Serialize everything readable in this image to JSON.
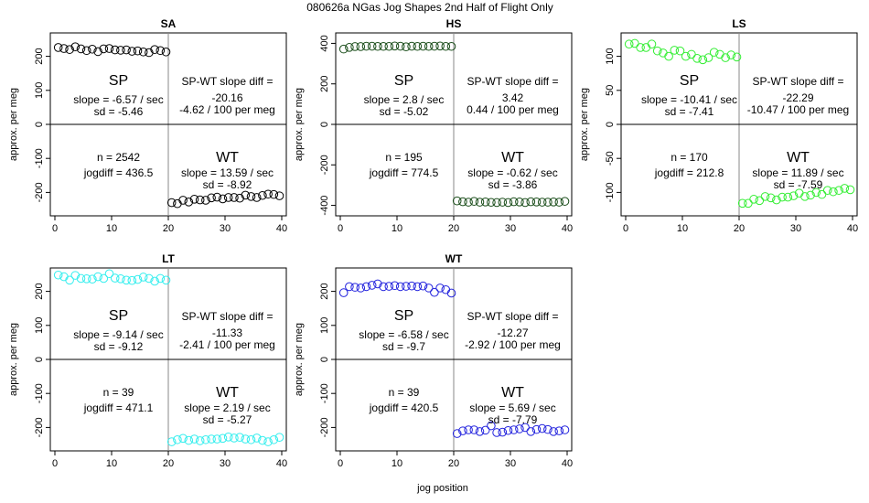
{
  "figure": {
    "title": "080626a   NGas Jog Shapes 2nd Half of Flight Only",
    "xlabel": "jog position",
    "ylabel": "approx. per meg"
  },
  "chart_data": [
    {
      "type": "scatter",
      "title": "SA",
      "color": "#000000",
      "xlim": [
        0,
        40
      ],
      "ylim": [
        -250,
        250
      ],
      "xticks": [
        "0",
        "10",
        "20",
        "30",
        "40"
      ],
      "yticks": [
        "-200",
        "-100",
        "0",
        "100",
        "200"
      ],
      "x": [
        1,
        2,
        3,
        4,
        5,
        6,
        7,
        8,
        9,
        10,
        11,
        12,
        13,
        14,
        15,
        16,
        17,
        18,
        19,
        20,
        21,
        22,
        23,
        24,
        25,
        26,
        27,
        28,
        29,
        30,
        31,
        32,
        33,
        34,
        35,
        36,
        37,
        38,
        39,
        40
      ],
      "y": [
        226,
        223,
        220,
        228,
        222,
        217,
        221,
        214,
        222,
        223,
        219,
        218,
        219,
        215,
        216,
        213,
        211,
        220,
        217,
        213,
        -230,
        -233,
        -223,
        -228,
        -220,
        -222,
        -223,
        -216,
        -214,
        -219,
        -215,
        -215,
        -217,
        -208,
        -212,
        -215,
        -209,
        -205,
        -206,
        -210
      ],
      "sp": {
        "label": "SP",
        "slope": "slope = -6.57 / sec",
        "sd": "sd = -5.46"
      },
      "wt": {
        "label": "WT",
        "slope": "slope = 13.59 / sec",
        "sd": "sd = -8.92"
      },
      "diff": {
        "label": "SP-WT slope diff =",
        "value": "-20.16",
        "permeg": "-4.62 / 100 per meg"
      },
      "n": "n = 2542",
      "jogdiff": "jogdiff = 436.5"
    },
    {
      "type": "scatter",
      "title": "HS",
      "color": "#1a4d1a",
      "xlim": [
        0,
        40
      ],
      "ylim": [
        -420,
        420
      ],
      "xticks": [
        "0",
        "10",
        "20",
        "30",
        "40"
      ],
      "yticks": [
        "-400",
        "-200",
        "0",
        "200",
        "400"
      ],
      "x": [
        1,
        2,
        3,
        4,
        5,
        6,
        7,
        8,
        9,
        10,
        11,
        12,
        13,
        14,
        15,
        16,
        17,
        18,
        19,
        20,
        21,
        22,
        23,
        24,
        25,
        26,
        27,
        28,
        29,
        30,
        31,
        32,
        33,
        34,
        35,
        36,
        37,
        38,
        39,
        40
      ],
      "y": [
        372,
        380,
        384,
        384,
        386,
        386,
        385,
        385,
        385,
        387,
        386,
        383,
        386,
        385,
        386,
        385,
        386,
        387,
        385,
        385,
        -378,
        -382,
        -384,
        -380,
        -384,
        -383,
        -385,
        -386,
        -384,
        -386,
        -382,
        -383,
        -386,
        -382,
        -383,
        -384,
        -384,
        -383,
        -384,
        -380
      ],
      "sp": {
        "label": "SP",
        "slope": "slope = 2.8 / sec",
        "sd": "sd = -5.02"
      },
      "wt": {
        "label": "WT",
        "slope": "slope = -0.62 / sec",
        "sd": "sd = -3.86"
      },
      "diff": {
        "label": "SP-WT slope diff =",
        "value": "3.42",
        "permeg": "0.44 / 100 per meg"
      },
      "n": "n = 195",
      "jogdiff": "jogdiff = 774.5"
    },
    {
      "type": "scatter",
      "title": "LS",
      "color": "#33ee33",
      "xlim": [
        0,
        40
      ],
      "ylim": [
        -125,
        125
      ],
      "xticks": [
        "0",
        "10",
        "20",
        "30",
        "40"
      ],
      "yticks": [
        "-100",
        "-50",
        "0",
        "50",
        "100"
      ],
      "x": [
        1,
        2,
        3,
        4,
        5,
        6,
        7,
        8,
        9,
        10,
        11,
        12,
        13,
        14,
        15,
        16,
        17,
        18,
        19,
        20,
        21,
        22,
        23,
        24,
        25,
        26,
        27,
        28,
        29,
        30,
        31,
        32,
        33,
        34,
        35,
        36,
        37,
        38,
        39,
        40
      ],
      "y": [
        118,
        119,
        113,
        113,
        118,
        108,
        105,
        100,
        109,
        108,
        100,
        103,
        97,
        95,
        98,
        106,
        103,
        98,
        102,
        99,
        -116,
        -116,
        -110,
        -112,
        -106,
        -108,
        -111,
        -107,
        -107,
        -105,
        -101,
        -106,
        -104,
        -100,
        -103,
        -97,
        -99,
        -97,
        -94,
        -96
      ],
      "sp": {
        "label": "SP",
        "slope": "slope = -10.41 / sec",
        "sd": "sd = -7.41"
      },
      "wt": {
        "label": "WT",
        "slope": "slope = 11.89 / sec",
        "sd": "sd = -7.59"
      },
      "diff": {
        "label": "SP-WT slope diff =",
        "value": "-22.29",
        "permeg": "-10.47 / 100 per meg"
      },
      "n": "n = 170",
      "jogdiff": "jogdiff = 212.8"
    },
    {
      "type": "scatter",
      "title": "LT",
      "color": "#33eeee",
      "xlim": [
        0,
        40
      ],
      "ylim": [
        -250,
        250
      ],
      "xticks": [
        "0",
        "10",
        "20",
        "30",
        "40"
      ],
      "yticks": [
        "-200",
        "-100",
        "0",
        "100",
        "200"
      ],
      "x": [
        1,
        2,
        3,
        4,
        5,
        6,
        7,
        8,
        9,
        10,
        11,
        12,
        13,
        14,
        15,
        16,
        17,
        18,
        19,
        20,
        21,
        22,
        23,
        24,
        25,
        26,
        27,
        28,
        29,
        30,
        31,
        32,
        33,
        34,
        35,
        36,
        37,
        38,
        39,
        40
      ],
      "y": [
        248,
        243,
        233,
        247,
        238,
        237,
        236,
        243,
        238,
        252,
        239,
        237,
        233,
        232,
        235,
        242,
        238,
        230,
        238,
        233,
        -242,
        -236,
        -232,
        -238,
        -234,
        -239,
        -236,
        -234,
        -234,
        -232,
        -228,
        -231,
        -229,
        -234,
        -236,
        -231,
        -238,
        -242,
        -236,
        -229
      ],
      "sp": {
        "label": "SP",
        "slope": "slope = -9.14 / sec",
        "sd": "sd = -9.12"
      },
      "wt": {
        "label": "WT",
        "slope": "slope = 2.19 / sec",
        "sd": "sd = -5.27"
      },
      "diff": {
        "label": "SP-WT slope diff =",
        "value": "-11.33",
        "permeg": "-2.41 / 100 per meg"
      },
      "n": "n = 39",
      "jogdiff": "jogdiff = 471.1"
    },
    {
      "type": "scatter",
      "title": "WT",
      "color": "#2222dd",
      "xlim": [
        0,
        40
      ],
      "ylim": [
        -250,
        250
      ],
      "xticks": [
        "0",
        "10",
        "20",
        "30",
        "40"
      ],
      "yticks": [
        "-200",
        "-100",
        "0",
        "100",
        "200"
      ],
      "x": [
        1,
        2,
        3,
        4,
        5,
        6,
        7,
        8,
        9,
        10,
        11,
        12,
        13,
        14,
        15,
        16,
        17,
        18,
        19,
        20,
        21,
        22,
        23,
        24,
        25,
        26,
        27,
        28,
        29,
        30,
        31,
        32,
        33,
        34,
        35,
        36,
        37,
        38,
        39,
        40
      ],
      "y": [
        196,
        214,
        212,
        210,
        214,
        218,
        222,
        214,
        215,
        217,
        214,
        215,
        216,
        214,
        216,
        210,
        197,
        210,
        205,
        195,
        -218,
        -210,
        -207,
        -207,
        -212,
        -208,
        -195,
        -215,
        -214,
        -209,
        -207,
        -204,
        -200,
        -212,
        -206,
        -203,
        -206,
        -212,
        -210,
        -207
      ],
      "sp": {
        "label": "SP",
        "slope": "slope = -6.58 / sec",
        "sd": "sd = -9.7"
      },
      "wt": {
        "label": "WT",
        "slope": "slope = 5.69 / sec",
        "sd": "sd = -7.79"
      },
      "diff": {
        "label": "SP-WT slope diff =",
        "value": "-12.27",
        "permeg": "-2.92 / 100 per meg"
      },
      "n": "n = 39",
      "jogdiff": "jogdiff = 420.5"
    }
  ]
}
